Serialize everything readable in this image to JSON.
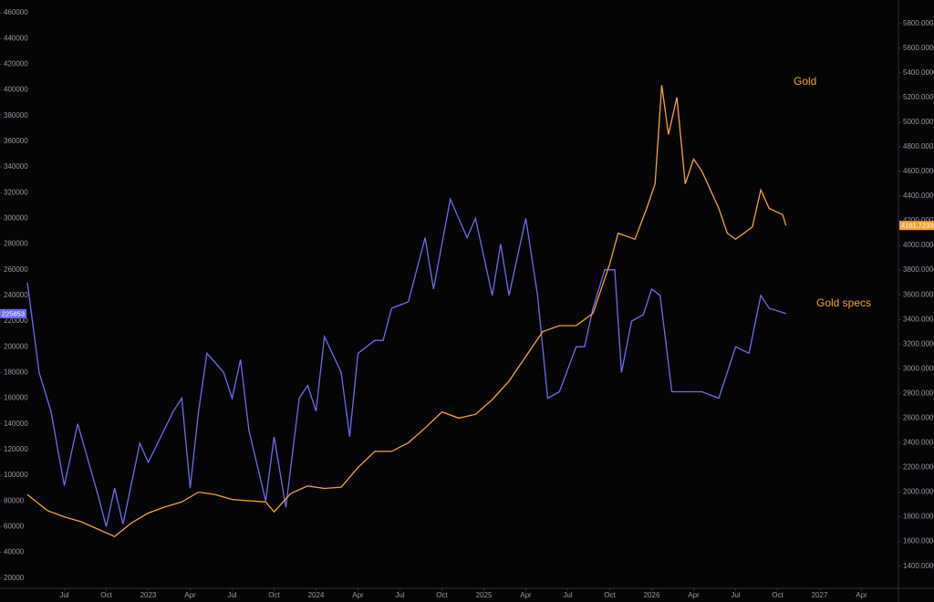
{
  "chart_data": {
    "type": "line",
    "annotations": [
      "Gold",
      "Gold specs"
    ],
    "xlim": [
      2022.28,
      2027.47
    ],
    "xticks": [
      {
        "value": 2022.5,
        "label": "Jul"
      },
      {
        "value": 2022.75,
        "label": "Oct"
      },
      {
        "value": 2023,
        "label": "2023"
      },
      {
        "value": 2023.25,
        "label": "Apr"
      },
      {
        "value": 2023.5,
        "label": "Jul"
      },
      {
        "value": 2023.75,
        "label": "Oct"
      },
      {
        "value": 2024,
        "label": "2024"
      },
      {
        "value": 2024.25,
        "label": "Apr"
      },
      {
        "value": 2024.5,
        "label": "Jul"
      },
      {
        "value": 2024.75,
        "label": "Oct"
      },
      {
        "value": 2025,
        "label": "2025"
      },
      {
        "value": 2025.25,
        "label": "Apr"
      },
      {
        "value": 2025.5,
        "label": "Jul"
      },
      {
        "value": 2025.75,
        "label": "Oct"
      },
      {
        "value": 2026,
        "label": "2026"
      },
      {
        "value": 2026.25,
        "label": "Apr"
      },
      {
        "value": 2026.5,
        "label": "Jul"
      },
      {
        "value": 2026.75,
        "label": "Oct"
      },
      {
        "value": 2027,
        "label": "2027"
      },
      {
        "value": 2027.25,
        "label": "Apr"
      }
    ],
    "ylim": [
      12000,
      470000
    ],
    "yticks": [
      20000,
      40000,
      60000,
      80000,
      100000,
      120000,
      140000,
      160000,
      180000,
      200000,
      220000,
      240000,
      260000,
      280000,
      300000,
      320000,
      340000,
      360000,
      380000,
      400000,
      420000,
      440000,
      460000
    ],
    "y2lim": [
      1220,
      5990
    ],
    "y2ticks": [
      {
        "value": 1400,
        "label": "1400.0000"
      },
      {
        "value": 1600,
        "label": "1600.0000"
      },
      {
        "value": 1800,
        "label": "1800.0000"
      },
      {
        "value": 2000,
        "label": "2000.0000"
      },
      {
        "value": 2200,
        "label": "2200.0000"
      },
      {
        "value": 2400,
        "label": "2400.0000"
      },
      {
        "value": 2600,
        "label": "2600.0000"
      },
      {
        "value": 2800,
        "label": "2800.0000"
      },
      {
        "value": 3000,
        "label": "3000.0000"
      },
      {
        "value": 3200,
        "label": "3200.0000"
      },
      {
        "value": 3400,
        "label": "3400.0000"
      },
      {
        "value": 3600,
        "label": "3600.0000"
      },
      {
        "value": 3800,
        "label": "3800.0000"
      },
      {
        "value": 4000,
        "label": "4000.0000"
      },
      {
        "value": 4200,
        "label": "4200.0000"
      },
      {
        "value": 4400,
        "label": "4400.0000"
      },
      {
        "value": 4600,
        "label": "4600.0000"
      },
      {
        "value": 4800,
        "label": "4800.0000"
      },
      {
        "value": 5000,
        "label": "5000.0000"
      },
      {
        "value": 5200,
        "label": "5200.0000"
      },
      {
        "value": 5400,
        "label": "5400.0000"
      },
      {
        "value": 5600,
        "label": "5600.0000"
      },
      {
        "value": 5800,
        "label": "5800.0000"
      }
    ],
    "series": [
      {
        "name": "Gold specs",
        "color": "#6b6bf0",
        "axis": "y",
        "last_label": "225853",
        "x": [
          2022.28,
          2022.35,
          2022.42,
          2022.5,
          2022.58,
          2022.7,
          2022.75,
          2022.8,
          2022.85,
          2022.95,
          2023.0,
          2023.15,
          2023.2,
          2023.25,
          2023.3,
          2023.35,
          2023.45,
          2023.5,
          2023.55,
          2023.6,
          2023.7,
          2023.75,
          2023.82,
          2023.9,
          2023.95,
          2024.0,
          2024.05,
          2024.15,
          2024.2,
          2024.25,
          2024.35,
          2024.4,
          2024.45,
          2024.55,
          2024.65,
          2024.7,
          2024.8,
          2024.9,
          2024.95,
          2025.05,
          2025.1,
          2025.15,
          2025.25,
          2025.32,
          2025.38,
          2025.45,
          2025.55,
          2025.6,
          2025.65,
          2025.72,
          2025.78,
          2025.82,
          2025.88,
          2025.95,
          2026.0,
          2026.05,
          2026.12,
          2026.2,
          2026.3,
          2026.4,
          2026.5,
          2026.58,
          2026.65,
          2026.7,
          2026.8
        ],
        "values": [
          250000,
          180000,
          150000,
          92000,
          140000,
          85000,
          60000,
          90000,
          62000,
          125000,
          110000,
          150000,
          160000,
          90000,
          150000,
          195000,
          180000,
          160000,
          190000,
          135000,
          80000,
          130000,
          75000,
          160000,
          170000,
          150000,
          208000,
          180000,
          130000,
          195000,
          205000,
          205000,
          230000,
          235000,
          285000,
          245000,
          315000,
          285000,
          300000,
          240000,
          280000,
          240000,
          300000,
          240000,
          160000,
          165000,
          200000,
          200000,
          230000,
          260000,
          260000,
          180000,
          220000,
          225000,
          245000,
          240000,
          165000,
          165000,
          165000,
          160000,
          200000,
          195000,
          240000,
          230000,
          225853
        ]
      },
      {
        "name": "Gold",
        "color": "#f7a233",
        "axis": "y2",
        "last_label": "4161.7233",
        "x": [
          2022.28,
          2022.4,
          2022.5,
          2022.6,
          2022.7,
          2022.8,
          2022.9,
          2023.0,
          2023.1,
          2023.2,
          2023.3,
          2023.4,
          2023.5,
          2023.6,
          2023.7,
          2023.75,
          2023.85,
          2023.95,
          2024.05,
          2024.15,
          2024.25,
          2024.35,
          2024.45,
          2024.55,
          2024.65,
          2024.75,
          2024.85,
          2024.95,
          2025.05,
          2025.15,
          2025.25,
          2025.35,
          2025.45,
          2025.55,
          2025.65,
          2025.75,
          2025.8,
          2025.9,
          2025.97,
          2026.02,
          2026.06,
          2026.1,
          2026.15,
          2026.2,
          2026.25,
          2026.3,
          2026.4,
          2026.45,
          2026.5,
          2026.6,
          2026.65,
          2026.7,
          2026.78,
          2026.8
        ],
        "values": [
          1980,
          1850,
          1800,
          1760,
          1700,
          1640,
          1750,
          1830,
          1880,
          1920,
          2000,
          1980,
          1940,
          1930,
          1920,
          1840,
          1990,
          2050,
          2030,
          2040,
          2200,
          2330,
          2330,
          2400,
          2520,
          2650,
          2600,
          2630,
          2750,
          2900,
          3100,
          3300,
          3350,
          3350,
          3450,
          3850,
          4100,
          4050,
          4300,
          4500,
          5300,
          4900,
          5200,
          4500,
          4700,
          4600,
          4300,
          4100,
          4050,
          4150,
          4450,
          4300,
          4250,
          4161.7233
        ]
      }
    ]
  }
}
